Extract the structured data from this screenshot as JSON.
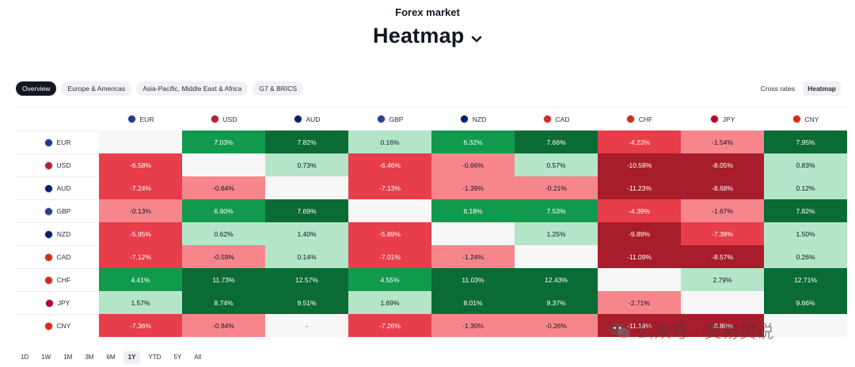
{
  "header": {
    "subtitle": "Forex market",
    "title": "Heatmap"
  },
  "tabs": [
    {
      "label": "Overview",
      "active": true
    },
    {
      "label": "Europe & Americas",
      "active": false
    },
    {
      "label": "Asia-Pacific, Middle East & Africa",
      "active": false
    },
    {
      "label": "G7 & BRICS",
      "active": false
    }
  ],
  "views": [
    {
      "label": "Cross rates",
      "active": false
    },
    {
      "label": "Heatmap",
      "active": true
    }
  ],
  "currencies": [
    {
      "code": "EUR",
      "icon": "eu-flag-icon",
      "color": "#1f3b8f"
    },
    {
      "code": "USD",
      "icon": "us-flag-icon",
      "color": "#b22234"
    },
    {
      "code": "AUD",
      "icon": "au-flag-icon",
      "color": "#012169"
    },
    {
      "code": "GBP",
      "icon": "gb-flag-icon",
      "color": "#2b3f8a"
    },
    {
      "code": "NZD",
      "icon": "nz-flag-icon",
      "color": "#012169"
    },
    {
      "code": "CAD",
      "icon": "ca-flag-icon",
      "color": "#d52b1e"
    },
    {
      "code": "CHF",
      "icon": "ch-flag-icon",
      "color": "#d52b1e"
    },
    {
      "code": "JPY",
      "icon": "jp-flag-icon",
      "color": "#bc002d"
    },
    {
      "code": "CNY",
      "icon": "cn-flag-icon",
      "color": "#de2910"
    }
  ],
  "matrix": [
    [
      "",
      "7.03%",
      "7.82%",
      "0.16%",
      "6.32%",
      "7.66%",
      "-4.23%",
      "-1.54%",
      "7.95%"
    ],
    [
      "-6.58%",
      "",
      "0.73%",
      "-6.46%",
      "-0.66%",
      "0.57%",
      "-10.58%",
      "-8.05%",
      "0.83%"
    ],
    [
      "-7.24%",
      "-0.64%",
      "",
      "-7.13%",
      "-1.39%",
      "-0.21%",
      "-11.23%",
      "-8.68%",
      "0.12%"
    ],
    [
      "-0.13%",
      "6.90%",
      "7.69%",
      "",
      "6.18%",
      "7.53%",
      "-4.39%",
      "-1.67%",
      "7.82%"
    ],
    [
      "-5.95%",
      "0.62%",
      "1.40%",
      "-5.89%",
      "",
      "1.25%",
      "-9.89%",
      "-7.38%",
      "1.50%"
    ],
    [
      "-7.12%",
      "-0.59%",
      "0.14%",
      "-7.01%",
      "-1.24%",
      "",
      "-11.09%",
      "-8.57%",
      "0.26%"
    ],
    [
      "4.41%",
      "11.73%",
      "12.57%",
      "4.55%",
      "11.03%",
      "12.43%",
      "",
      "2.79%",
      "12.71%"
    ],
    [
      "1.57%",
      "8.74%",
      "9.51%",
      "1.69%",
      "8.01%",
      "9.37%",
      "-2.71%",
      "",
      "9.66%"
    ],
    [
      "-7.36%",
      "-0.84%",
      "-",
      "-7.26%",
      "-1.30%",
      "-0.26%",
      "-11.18%",
      "-8.80%",
      ""
    ]
  ],
  "periods": [
    {
      "label": "1D",
      "active": false
    },
    {
      "label": "1W",
      "active": false
    },
    {
      "label": "1M",
      "active": false
    },
    {
      "label": "3M",
      "active": false
    },
    {
      "label": "6M",
      "active": false
    },
    {
      "label": "1Y",
      "active": true
    },
    {
      "label": "YTD",
      "active": false
    },
    {
      "label": "5Y",
      "active": false
    },
    {
      "label": "All",
      "active": false
    }
  ],
  "watermark": {
    "text": "公众号 · 交易员说"
  },
  "colors": {
    "pos_strong": "#0b6b35",
    "pos_mid": "#119a4d",
    "pos_light": "#b4e5c8",
    "neg_strong": "#a81d2b",
    "neg_mid": "#e83d4b",
    "neg_light": "#f7868c",
    "empty": "#f7f7f7"
  }
}
